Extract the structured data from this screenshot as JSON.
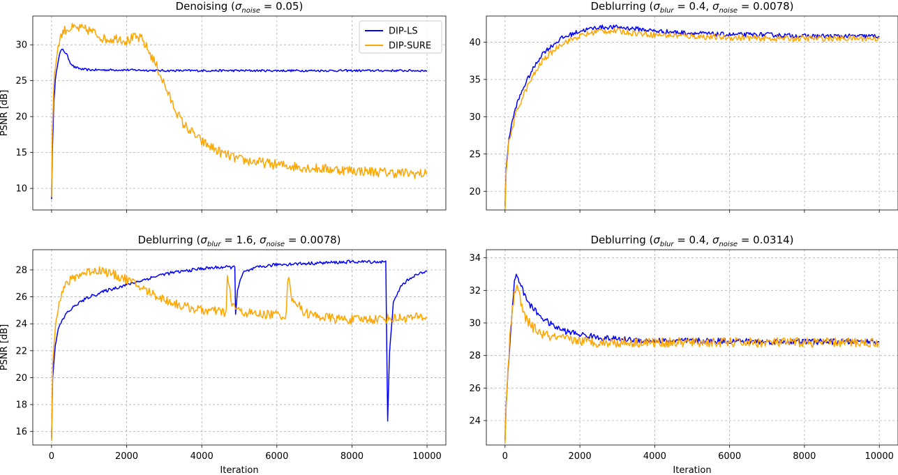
{
  "figure": {
    "shared_xlabel": "Iteration"
  },
  "chart_data": [
    {
      "type": "line",
      "title_text": "Denoising (",
      "title_math": "σ_noise = 0.05",
      "title_sigma1_sub": "noise",
      "title_sigma1_val": "0.05",
      "xlabel": "",
      "ylabel": "PSNR [dB]",
      "xlim": [
        -500,
        10500
      ],
      "ylim": [
        7,
        34
      ],
      "xticks": [
        0,
        2000,
        4000,
        6000,
        8000,
        10000
      ],
      "yticks": [
        10,
        15,
        20,
        25,
        30
      ],
      "show_xtick_labels": false,
      "grid": true,
      "legend": {
        "placement": "top-right",
        "entries": [
          "DIP-LS",
          "DIP-SURE"
        ]
      },
      "series": [
        {
          "name": "DIP-LS",
          "color": "#0000ff",
          "x": [
            0,
            20,
            60,
            100,
            150,
            200,
            250,
            300,
            400,
            500,
            600,
            800,
            1000,
            1500,
            2000,
            3000,
            4000,
            5000,
            6000,
            7000,
            8000,
            9000,
            10000
          ],
          "values": [
            8.5,
            15,
            22,
            25,
            27,
            28.5,
            29.2,
            29.3,
            28.7,
            27.5,
            26.9,
            26.6,
            26.5,
            26.5,
            26.5,
            26.4,
            26.4,
            26.4,
            26.4,
            26.4,
            26.4,
            26.4,
            26.4
          ],
          "noise": 0.15
        },
        {
          "name": "DIP-SURE",
          "color": "#ffa500",
          "x": [
            0,
            20,
            60,
            100,
            150,
            200,
            300,
            400,
            600,
            800,
            1000,
            1200,
            1400,
            1600,
            1800,
            2000,
            2200,
            2400,
            2600,
            2800,
            3000,
            3200,
            3500,
            4000,
            4500,
            5000,
            6000,
            7000,
            8000,
            9000,
            10000
          ],
          "values": [
            8.8,
            18,
            24,
            27,
            29,
            30.5,
            31.8,
            32.2,
            32.3,
            32.2,
            32,
            31.5,
            30.8,
            30.8,
            31,
            30.5,
            31,
            30.8,
            29,
            27,
            24.5,
            22,
            19,
            16.5,
            15,
            14,
            13.3,
            12.8,
            12.5,
            12.2,
            12.0
          ],
          "noise": 0.7
        }
      ]
    },
    {
      "type": "line",
      "title_text": "Deblurring (",
      "title_sigma1_sub": "blur",
      "title_sigma1_val": "0.4",
      "title_sigma2_sub": "noise",
      "title_sigma2_val": "0.0078",
      "xlabel": "",
      "ylabel": "",
      "xlim": [
        -500,
        10500
      ],
      "ylim": [
        17.5,
        43.5
      ],
      "xticks": [
        0,
        2000,
        4000,
        6000,
        8000,
        10000
      ],
      "yticks": [
        20,
        25,
        30,
        35,
        40
      ],
      "show_xtick_labels": false,
      "grid": true,
      "series": [
        {
          "name": "DIP-LS",
          "color": "#0000ff",
          "x": [
            0,
            30,
            100,
            200,
            300,
            500,
            700,
            1000,
            1500,
            2000,
            2500,
            3000,
            3500,
            4000,
            5000,
            6000,
            7000,
            8000,
            9000,
            10000
          ],
          "values": [
            18,
            23,
            27,
            29.5,
            31.5,
            34,
            36,
            38.5,
            40.5,
            41.5,
            42,
            42,
            41.8,
            41.5,
            41.2,
            41,
            41,
            40.8,
            40.8,
            40.8
          ],
          "noise": 0.3
        },
        {
          "name": "DIP-SURE",
          "color": "#ffa500",
          "x": [
            0,
            30,
            100,
            200,
            300,
            500,
            700,
            1000,
            1500,
            2000,
            2500,
            3000,
            3500,
            4000,
            5000,
            6000,
            7000,
            8000,
            9000,
            10000
          ],
          "values": [
            17.5,
            22.5,
            26.5,
            28.5,
            30.5,
            33,
            35,
            37.5,
            39.8,
            40.8,
            41.5,
            41.5,
            41.2,
            41,
            40.8,
            40.6,
            40.5,
            40.5,
            40.5,
            40.5
          ],
          "noise": 0.4
        }
      ]
    },
    {
      "type": "line",
      "title_text": "Deblurring (",
      "title_sigma1_sub": "blur",
      "title_sigma1_val": "1.6",
      "title_sigma2_sub": "noise",
      "title_sigma2_val": "0.0078",
      "xlabel": "Iteration",
      "ylabel": "PSNR [dB]",
      "xlim": [
        -500,
        10500
      ],
      "ylim": [
        15,
        29.5
      ],
      "xticks": [
        0,
        2000,
        4000,
        6000,
        8000,
        10000
      ],
      "yticks": [
        16,
        18,
        20,
        22,
        24,
        26,
        28
      ],
      "show_xtick_labels": true,
      "grid": true,
      "series": [
        {
          "name": "DIP-LS",
          "color": "#0000ff",
          "x": [
            0,
            30,
            100,
            200,
            400,
            700,
            1000,
            1500,
            2000,
            2500,
            3000,
            3500,
            4000,
            4500,
            4880,
            4900,
            4950,
            5100,
            5500,
            6000,
            7000,
            8000,
            8900,
            8950,
            9000,
            9100,
            9300,
            9600,
            10000
          ],
          "values": [
            15.5,
            20,
            22.5,
            23.8,
            24.8,
            25.5,
            26,
            26.5,
            26.9,
            27.3,
            27.7,
            27.9,
            28.1,
            28.2,
            28.2,
            24.8,
            26.5,
            27.8,
            28.2,
            28.4,
            28.5,
            28.6,
            28.6,
            16.7,
            22,
            25.5,
            26.8,
            27.5,
            27.9
          ],
          "noise": 0.12
        },
        {
          "name": "DIP-SURE",
          "color": "#ffa500",
          "x": [
            0,
            30,
            100,
            200,
            400,
            700,
            1000,
            1300,
            1600,
            2000,
            2500,
            3000,
            3500,
            4000,
            4500,
            4650,
            4680,
            4800,
            5000,
            5500,
            6000,
            6250,
            6290,
            6400,
            6700,
            7000,
            7500,
            8000,
            9000,
            10000
          ],
          "values": [
            15.3,
            21,
            24,
            25.8,
            27,
            27.6,
            27.9,
            28,
            27.7,
            27.3,
            26.5,
            25.8,
            25.3,
            25.0,
            24.9,
            24.8,
            27.5,
            25.5,
            24.9,
            24.7,
            24.7,
            24.6,
            27.5,
            26,
            24.9,
            24.6,
            24.4,
            24.3,
            24.4,
            24.5
          ],
          "noise": 0.35
        }
      ]
    },
    {
      "type": "line",
      "title_text": "Deblurring (",
      "title_sigma1_sub": "blur",
      "title_sigma1_val": "0.4",
      "title_sigma2_sub": "noise",
      "title_sigma2_val": "0.0314",
      "xlabel": "Iteration",
      "ylabel": "",
      "xlim": [
        -500,
        10500
      ],
      "ylim": [
        22.5,
        34.5
      ],
      "xticks": [
        0,
        2000,
        4000,
        6000,
        8000,
        10000
      ],
      "yticks": [
        24,
        26,
        28,
        30,
        32,
        34
      ],
      "show_xtick_labels": true,
      "grid": true,
      "series": [
        {
          "name": "DIP-LS",
          "color": "#0000ff",
          "x": [
            0,
            30,
            80,
            150,
            250,
            300,
            400,
            500,
            700,
            1000,
            1300,
            1600,
            2000,
            2500,
            3000,
            4000,
            5000,
            6000,
            7000,
            8000,
            9000,
            10000
          ],
          "values": [
            22.8,
            25,
            27,
            29.5,
            32.5,
            33,
            32.5,
            31.8,
            31,
            30.3,
            29.8,
            29.5,
            29.3,
            29.1,
            29.0,
            28.9,
            28.9,
            28.9,
            28.85,
            28.85,
            28.85,
            28.85
          ],
          "noise": 0.18
        },
        {
          "name": "DIP-SURE",
          "color": "#ffa500",
          "x": [
            0,
            30,
            80,
            150,
            250,
            300,
            400,
            500,
            700,
            1000,
            1300,
            1600,
            2000,
            2500,
            3000,
            4000,
            5000,
            6000,
            7000,
            8000,
            9000,
            10000
          ],
          "values": [
            22.6,
            24.8,
            27.2,
            29.8,
            31.8,
            32.3,
            31.5,
            30.5,
            29.8,
            29.3,
            29.1,
            29.0,
            28.9,
            28.8,
            28.8,
            28.8,
            28.8,
            28.8,
            28.8,
            28.8,
            28.8,
            28.8
          ],
          "noise": 0.3
        }
      ]
    }
  ]
}
